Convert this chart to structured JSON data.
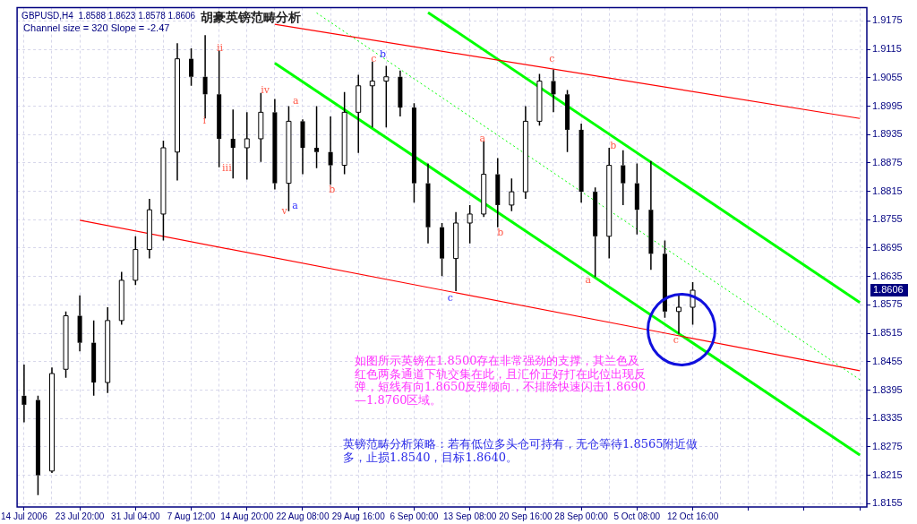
{
  "chart_data": {
    "type": "candlestick",
    "title": "胡豪英镑范畴分析",
    "subtitle": "GBPUSD,H4  1.8588 1.8623 1.8578 1.8606",
    "categories": [
      "14 Jul 2006",
      null,
      null,
      null,
      "23 Jul 20:00",
      null,
      null,
      null,
      "31 Jul 04:00",
      null,
      null,
      null,
      "7 Aug 12:00",
      null,
      null,
      null,
      "14 Aug 20:00",
      null,
      null,
      null,
      "22 Aug 08:00",
      null,
      null,
      null,
      "29 Aug 16:00",
      null,
      null,
      null,
      "6 Sep 00:00",
      null,
      null,
      null,
      "13 Sep 08:00",
      null,
      null,
      null,
      "20 Sep 16:00",
      null,
      null,
      null,
      "28 Sep 00:00",
      null,
      null,
      null,
      "5 Oct 08:00",
      null,
      null,
      null,
      "12 Oct 16:00",
      null,
      null,
      null,
      null,
      null,
      null,
      null,
      null,
      null,
      null,
      null,
      null
    ],
    "ohlc": [
      [
        1.8383,
        1.8449,
        1.8327,
        1.8364
      ],
      [
        1.8374,
        1.8383,
        1.8173,
        1.8215
      ],
      [
        1.8224,
        1.8443,
        1.822,
        1.843
      ],
      [
        1.8439,
        1.8561,
        1.8421,
        1.8552
      ],
      [
        1.8552,
        1.8595,
        1.8477,
        1.8495
      ],
      [
        1.8495,
        1.8542,
        1.8383,
        1.8411
      ],
      [
        1.8411,
        1.857,
        1.8389,
        1.8542
      ],
      [
        1.8542,
        1.8645,
        1.8533,
        1.8627
      ],
      [
        1.8627,
        1.872,
        1.8617,
        1.8692
      ],
      [
        1.8692,
        1.8799,
        1.8673,
        1.8776
      ],
      [
        1.8767,
        1.8922,
        1.8711,
        1.8907
      ],
      [
        1.8898,
        1.9128,
        1.8838,
        1.9095
      ],
      [
        1.9095,
        1.9117,
        1.9038,
        1.9057
      ],
      [
        1.9057,
        1.9145,
        1.8969,
        1.902
      ],
      [
        1.902,
        1.9113,
        1.8866,
        1.8926
      ],
      [
        1.8926,
        1.8988,
        1.8842,
        1.8907
      ],
      [
        1.8907,
        1.8982,
        1.884,
        1.8926
      ],
      [
        1.8926,
        1.9023,
        1.8877,
        1.8982
      ],
      [
        1.8982,
        1.901,
        1.8819,
        1.8832
      ],
      [
        1.8832,
        1.8995,
        1.8773,
        1.8963
      ],
      [
        1.8963,
        1.8967,
        1.8851,
        1.8907
      ],
      [
        1.8907,
        1.8995,
        1.8864,
        1.8898
      ],
      [
        1.8898,
        1.8973,
        1.8829,
        1.887
      ],
      [
        1.887,
        1.9025,
        1.8851,
        1.8982
      ],
      [
        1.8982,
        1.9061,
        1.8896,
        1.9038
      ],
      [
        1.9038,
        1.9089,
        1.895,
        1.9048
      ],
      [
        1.9048,
        1.908,
        1.895,
        1.9057
      ],
      [
        1.9057,
        1.907,
        1.8973,
        1.8992
      ],
      [
        1.8992,
        1.9001,
        1.8791,
        1.8832
      ],
      [
        1.8832,
        1.8874,
        1.8705,
        1.8739
      ],
      [
        1.8739,
        1.8748,
        1.8636,
        1.8673
      ],
      [
        1.8673,
        1.8771,
        1.8604,
        1.8748
      ],
      [
        1.8748,
        1.8786,
        1.8705,
        1.8767
      ],
      [
        1.8767,
        1.892,
        1.8761,
        1.8851
      ],
      [
        1.8851,
        1.8885,
        1.8739,
        1.8786
      ],
      [
        1.8786,
        1.8842,
        1.8773,
        1.8814
      ],
      [
        1.8814,
        1.8995,
        1.8799,
        1.8963
      ],
      [
        1.8963,
        1.9063,
        1.8954,
        1.9048
      ],
      [
        1.9048,
        1.9072,
        1.8982,
        1.902
      ],
      [
        1.902,
        1.9029,
        1.8898,
        1.8945
      ],
      [
        1.8945,
        1.8958,
        1.8791,
        1.8814
      ],
      [
        1.8814,
        1.8823,
        1.8634,
        1.872
      ],
      [
        1.872,
        1.8907,
        1.8673,
        1.887
      ],
      [
        1.887,
        1.8902,
        1.8786,
        1.8832
      ],
      [
        1.8832,
        1.8874,
        1.8724,
        1.8776
      ],
      [
        1.8776,
        1.8879,
        1.8649,
        1.8683
      ],
      [
        1.8683,
        1.8711,
        1.8548,
        1.8561
      ],
      [
        1.8561,
        1.8598,
        1.8514,
        1.857
      ],
      [
        1.857,
        1.8623,
        1.8533,
        1.8606
      ],
      null,
      null,
      null,
      null,
      null,
      null,
      null,
      null,
      null,
      null,
      null,
      null
    ],
    "series": [
      {
        "type": "line",
        "color": "#ff0000",
        "values": [
          null,
          null,
          null,
          null,
          null,
          null,
          null,
          null,
          null,
          null,
          null,
          null,
          null,
          null,
          null,
          null,
          null,
          null,
          1.9168,
          null,
          null,
          null,
          null,
          null,
          null,
          null,
          null,
          null,
          null,
          null,
          null,
          null,
          null,
          null,
          null,
          null,
          null,
          null,
          null,
          null,
          null,
          null,
          null,
          null,
          null,
          null,
          null,
          null,
          null,
          null,
          null,
          null,
          null,
          null,
          null,
          null,
          null,
          null,
          null,
          null,
          1.8969
        ]
      },
      {
        "type": "line",
        "color": "#ff0000",
        "values": [
          null,
          null,
          null,
          null,
          1.8754,
          null,
          null,
          null,
          null,
          null,
          null,
          null,
          null,
          null,
          null,
          null,
          null,
          null,
          null,
          null,
          null,
          null,
          null,
          null,
          null,
          null,
          null,
          null,
          null,
          null,
          null,
          null,
          null,
          null,
          null,
          null,
          null,
          null,
          null,
          null,
          null,
          null,
          null,
          null,
          null,
          null,
          null,
          null,
          null,
          null,
          null,
          null,
          null,
          null,
          null,
          null,
          null,
          null,
          null,
          null,
          1.8436
        ]
      },
      {
        "type": "line",
        "color": "#00ff00",
        "values": [
          null,
          null,
          null,
          null,
          null,
          null,
          null,
          null,
          null,
          null,
          null,
          null,
          null,
          null,
          null,
          null,
          null,
          null,
          null,
          null,
          null,
          null,
          null,
          null,
          null,
          null,
          null,
          null,
          null,
          1.9193,
          null,
          null,
          null,
          null,
          null,
          null,
          null,
          null,
          null,
          null,
          null,
          null,
          null,
          null,
          null,
          null,
          null,
          null,
          null,
          null,
          null,
          null,
          null,
          null,
          null,
          null,
          null,
          null,
          null,
          null,
          1.858
        ]
      },
      {
        "type": "line",
        "color": "#00ff00",
        "values": [
          null,
          null,
          null,
          null,
          null,
          null,
          null,
          null,
          null,
          null,
          null,
          null,
          null,
          null,
          null,
          null,
          null,
          null,
          1.9086,
          null,
          null,
          null,
          null,
          null,
          null,
          null,
          null,
          null,
          null,
          null,
          null,
          null,
          null,
          null,
          null,
          null,
          null,
          null,
          null,
          null,
          null,
          null,
          null,
          null,
          null,
          null,
          null,
          null,
          null,
          null,
          null,
          null,
          null,
          null,
          null,
          null,
          null,
          null,
          null,
          null,
          1.8258
        ]
      },
      {
        "type": "line",
        "color": "#00ff00",
        "line_style": "dashed",
        "values": [
          null,
          null,
          null,
          null,
          null,
          null,
          null,
          null,
          null,
          null,
          null,
          null,
          null,
          null,
          null,
          null,
          null,
          null,
          null,
          null,
          null,
          1.9192,
          null,
          null,
          null,
          null,
          null,
          null,
          null,
          null,
          null,
          null,
          null,
          null,
          null,
          null,
          null,
          null,
          null,
          null,
          null,
          null,
          null,
          null,
          null,
          null,
          null,
          null,
          null,
          null,
          null,
          null,
          null,
          null,
          null,
          null,
          null,
          null,
          null,
          null,
          1.8417
        ]
      }
    ],
    "ylim": [
      1.8148,
      1.9203
    ],
    "yticks": [
      1.8155,
      1.8215,
      1.8275,
      1.8335,
      1.8395,
      1.8455,
      1.8515,
      1.8575,
      1.8635,
      1.8695,
      1.8755,
      1.8815,
      1.8875,
      1.8935,
      1.8995,
      1.9055,
      1.9115,
      1.9175
    ],
    "grid": true,
    "legend": false,
    "marker": "none",
    "annotations": [
      "Channel size = 320 Slope = -2.47",
      "如图所示英镑在1.8500存在非常强劲的支撑，其兰色及红色两条通道下轨交集在此，且汇价正好打在此位出现反弹，短线有向1.8650反弹倾向，不排除快速闪击1.8690—1.8760区域。",
      "英镑范畴分析策略：若有低位多头仓可持有，无仓等待1.8565附近做多，止损1.8540，目标1.8640。",
      "1.8606",
      "ii",
      "i",
      "iii",
      "iv",
      "v",
      "a",
      "a",
      "b",
      "c",
      "b",
      "c",
      "a",
      "b",
      "c",
      "a",
      "b",
      "c"
    ]
  }
}
